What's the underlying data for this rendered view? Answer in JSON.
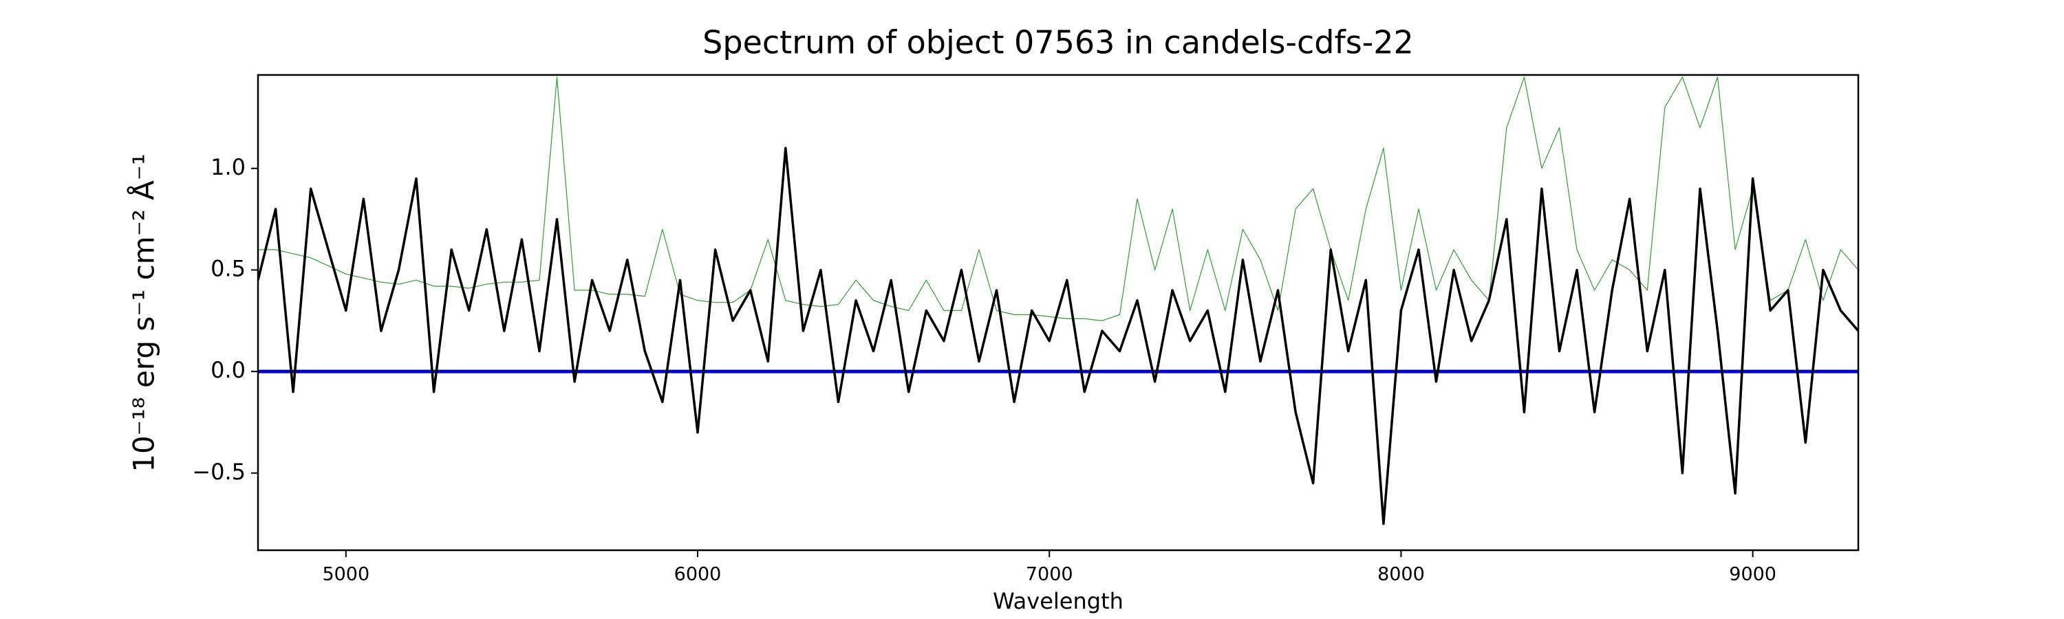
{
  "chart_data": {
    "type": "line",
    "title": "Spectrum of object 07563 in candels-cdfs-22",
    "xlabel": "Wavelength",
    "ylabel": "10⁻¹⁸ erg s⁻¹ cm⁻² Å⁻¹",
    "x": [
      4750,
      4800,
      4850,
      4900,
      4950,
      5000,
      5050,
      5100,
      5150,
      5200,
      5250,
      5300,
      5350,
      5400,
      5450,
      5500,
      5550,
      5600,
      5650,
      5700,
      5750,
      5800,
      5850,
      5900,
      5950,
      6000,
      6050,
      6100,
      6150,
      6200,
      6250,
      6300,
      6350,
      6400,
      6450,
      6500,
      6550,
      6600,
      6650,
      6700,
      6750,
      6800,
      6850,
      6900,
      6950,
      7000,
      7050,
      7100,
      7150,
      7200,
      7250,
      7300,
      7350,
      7400,
      7450,
      7500,
      7550,
      7600,
      7650,
      7700,
      7750,
      7800,
      7850,
      7900,
      7950,
      8000,
      8050,
      8100,
      8150,
      8200,
      8250,
      8300,
      8350,
      8400,
      8450,
      8500,
      8550,
      8600,
      8650,
      8700,
      8750,
      8800,
      8850,
      8900,
      8950,
      9000,
      9050,
      9100,
      9150,
      9200,
      9250,
      9300
    ],
    "series": [
      {
        "color": "#2ca02c",
        "width": 1.2,
        "values": [
          0.6,
          0.6,
          0.58,
          0.56,
          0.52,
          0.48,
          0.46,
          0.44,
          0.43,
          0.45,
          0.42,
          0.42,
          0.41,
          0.43,
          0.44,
          0.44,
          0.45,
          1.45,
          0.4,
          0.4,
          0.38,
          0.38,
          0.37,
          0.7,
          0.38,
          0.35,
          0.34,
          0.34,
          0.4,
          0.65,
          0.35,
          0.33,
          0.32,
          0.33,
          0.45,
          0.35,
          0.32,
          0.3,
          0.45,
          0.3,
          0.3,
          0.6,
          0.3,
          0.28,
          0.28,
          0.27,
          0.26,
          0.26,
          0.25,
          0.28,
          0.85,
          0.5,
          0.8,
          0.3,
          0.6,
          0.3,
          0.7,
          0.55,
          0.3,
          0.8,
          0.9,
          0.6,
          0.35,
          0.8,
          1.1,
          0.4,
          0.8,
          0.4,
          0.6,
          0.45,
          0.35,
          1.2,
          1.45,
          1.0,
          1.2,
          0.6,
          0.4,
          0.55,
          0.5,
          0.4,
          1.3,
          1.45,
          1.2,
          1.45,
          0.6,
          0.9,
          0.35,
          0.4,
          0.65,
          0.35,
          0.6,
          0.5
        ]
      },
      {
        "color": "#000000",
        "width": 3.5,
        "values": [
          0.45,
          0.8,
          -0.1,
          0.9,
          0.6,
          0.3,
          0.85,
          0.2,
          0.5,
          0.95,
          -0.1,
          0.6,
          0.3,
          0.7,
          0.2,
          0.65,
          0.1,
          0.75,
          -0.05,
          0.45,
          0.2,
          0.55,
          0.1,
          -0.15,
          0.45,
          -0.3,
          0.6,
          0.25,
          0.4,
          0.05,
          1.1,
          0.2,
          0.5,
          -0.15,
          0.35,
          0.1,
          0.45,
          -0.1,
          0.3,
          0.15,
          0.5,
          0.05,
          0.4,
          -0.15,
          0.3,
          0.15,
          0.45,
          -0.1,
          0.2,
          0.1,
          0.35,
          -0.05,
          0.4,
          0.15,
          0.3,
          -0.1,
          0.55,
          0.05,
          0.4,
          -0.2,
          -0.55,
          0.6,
          0.1,
          0.45,
          -0.75,
          0.3,
          0.6,
          -0.05,
          0.5,
          0.15,
          0.35,
          0.75,
          -0.2,
          0.9,
          0.1,
          0.5,
          -0.2,
          0.4,
          0.85,
          0.1,
          0.5,
          -0.5,
          0.9,
          0.2,
          -0.6,
          0.95,
          0.3,
          0.4,
          -0.35,
          0.5,
          0.3,
          0.2
        ]
      }
    ],
    "reference_line": {
      "y": 0,
      "color": "#0000cc"
    },
    "xlim": [
      4750,
      9300
    ],
    "xticks": [
      5000,
      6000,
      7000,
      8000,
      9000
    ],
    "ylim": [
      -0.88,
      1.46
    ],
    "yticks": [
      -0.5,
      0.0,
      0.5,
      1.0
    ]
  }
}
